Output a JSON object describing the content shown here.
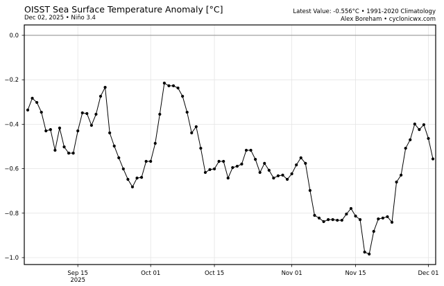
{
  "header": {
    "title": "OISST Sea Surface Temperature Anomaly [°C]",
    "subtitle": "Dec 02, 2025 • Niño 3.4",
    "right_line1": "Latest Value: -0.556°C • 1991-2020 Climatology",
    "right_line2": "Alex Boreham • cyclonicwx.com"
  },
  "chart_data": {
    "type": "line",
    "title": "OISST Sea Surface Temperature Anomaly [°C]",
    "subtitle": "Dec 02, 2025 • Niño 3.4",
    "xlabel": "",
    "ylabel": "",
    "ylim": [
      -1.04,
      0.04
    ],
    "yticks": [
      0.0,
      -0.2,
      -0.4,
      -0.6,
      -0.8,
      -1.0
    ],
    "ytick_labels": [
      "0.0",
      "−0.2",
      "−0.4",
      "−0.6",
      "−0.8",
      "−1.0"
    ],
    "xticks": [
      {
        "label": "Sep 15",
        "sublabel": "2025",
        "day_index": 11
      },
      {
        "label": "Oct 01",
        "sublabel": "",
        "day_index": 27
      },
      {
        "label": "Oct 15",
        "sublabel": "",
        "day_index": 41
      },
      {
        "label": "Nov 01",
        "sublabel": "",
        "day_index": 58
      },
      {
        "label": "Nov 15",
        "sublabel": "",
        "day_index": 72
      },
      {
        "label": "Dec 01",
        "sublabel": "",
        "day_index": 88
      }
    ],
    "grid": true,
    "reference_line": 0.0,
    "start_date": "2025-09-04",
    "end_date": "2025-12-02",
    "latest_value": -0.556,
    "line_color": "#000000",
    "series": [
      {
        "name": "Niño 3.4 SST Anomaly",
        "values": [
          -0.336,
          -0.283,
          -0.302,
          -0.346,
          -0.43,
          -0.424,
          -0.517,
          -0.417,
          -0.502,
          -0.53,
          -0.53,
          -0.43,
          -0.349,
          -0.352,
          -0.405,
          -0.355,
          -0.274,
          -0.234,
          -0.439,
          -0.498,
          -0.551,
          -0.601,
          -0.648,
          -0.682,
          -0.642,
          -0.639,
          -0.567,
          -0.567,
          -0.486,
          -0.355,
          -0.215,
          -0.227,
          -0.227,
          -0.237,
          -0.274,
          -0.346,
          -0.439,
          -0.411,
          -0.508,
          -0.617,
          -0.604,
          -0.601,
          -0.567,
          -0.567,
          -0.642,
          -0.595,
          -0.589,
          -0.579,
          -0.517,
          -0.517,
          -0.558,
          -0.617,
          -0.576,
          -0.607,
          -0.642,
          -0.632,
          -0.629,
          -0.648,
          -0.623,
          -0.583,
          -0.551,
          -0.576,
          -0.698,
          -0.81,
          -0.822,
          -0.838,
          -0.829,
          -0.829,
          -0.832,
          -0.832,
          -0.804,
          -0.779,
          -0.813,
          -0.829,
          -0.975,
          -0.984,
          -0.882,
          -0.826,
          -0.822,
          -0.816,
          -0.841,
          -0.66,
          -0.629,
          -0.508,
          -0.47,
          -0.399,
          -0.424,
          -0.402,
          -0.464,
          -0.556
        ]
      }
    ]
  }
}
